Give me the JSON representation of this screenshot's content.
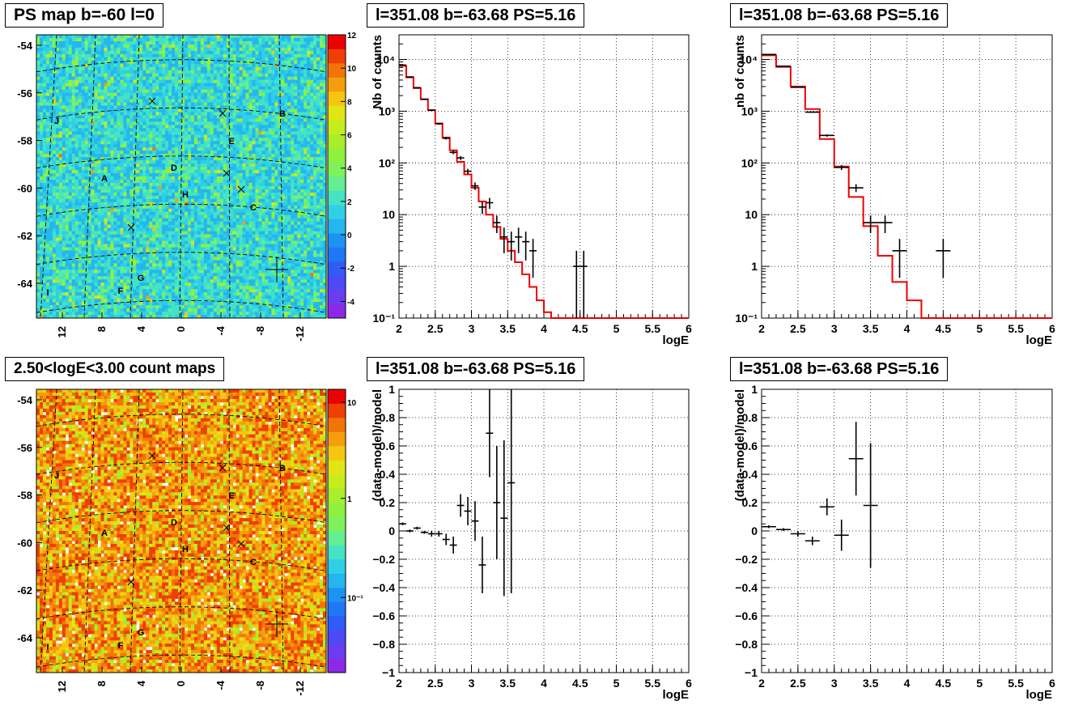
{
  "titles": {
    "map_top": "PS map b=-60 l=0",
    "map_bottom": "2.50<logE<3.00 count maps",
    "spec1": "l=351.08 b=-63.68 PS=5.16",
    "spec2": "l=351.08 b=-63.68 PS=5.16",
    "res1": "l=351.08 b=-63.68 PS=5.16",
    "res2": "l=351.08 b=-63.68 PS=5.16"
  },
  "maps": {
    "lat_ticks": [
      "-54",
      "-56",
      "-58",
      "-60",
      "-62",
      "-64"
    ],
    "lon_ticks": [
      "12",
      "8",
      "4",
      "0",
      "-4",
      "-8",
      "-12"
    ],
    "source_labels": [
      "A",
      "B",
      "C",
      "D",
      "E",
      "F",
      "G",
      "H",
      "I",
      "J"
    ],
    "top_colorbar": {
      "ticks": [
        "12",
        "10",
        "8",
        "6",
        "4",
        "2",
        "0",
        "-2",
        "-4"
      ],
      "range": [
        -5,
        12
      ]
    },
    "bottom_colorbar": {
      "ticks": [
        "10",
        "1",
        "10⁻¹"
      ],
      "scale": "log"
    }
  },
  "chart_data": [
    {
      "type": "line",
      "panel": "spectrum-1",
      "title": "l=351.08 b=-63.68 PS=5.16",
      "xlabel": "logE",
      "ylabel": "Nb of counts",
      "xlim": [
        2,
        6
      ],
      "ylim": [
        0.1,
        30000
      ],
      "yscale": "log",
      "grid": true,
      "xticks": [
        "2",
        "2.5",
        "3",
        "3.5",
        "4",
        "4.5",
        "5",
        "5.5",
        "6"
      ],
      "yticks": [
        "10⁻¹",
        "1",
        "10",
        "10²",
        "10³",
        "10⁴"
      ],
      "model_color": "#ee0000",
      "model_edges": [
        2.0,
        2.1,
        2.2,
        2.3,
        2.4,
        2.5,
        2.6,
        2.7,
        2.8,
        2.9,
        3.0,
        3.1,
        3.2,
        3.3,
        3.4,
        3.5,
        3.6,
        3.7,
        3.8,
        3.9,
        4.0,
        4.1,
        6.0
      ],
      "model_values": [
        7500,
        4500,
        2800,
        1700,
        1050,
        580,
        310,
        175,
        105,
        60,
        33,
        18,
        10,
        5.8,
        3.4,
        2.0,
        1.2,
        0.7,
        0.4,
        0.22,
        0.13,
        0.1
      ],
      "data": [
        {
          "x": 2.05,
          "xerr": 0.05,
          "y": 7800,
          "ylo": 7650,
          "yhi": 7950
        },
        {
          "x": 2.15,
          "xerr": 0.05,
          "y": 4600,
          "ylo": 4500,
          "yhi": 4700
        },
        {
          "x": 2.25,
          "xerr": 0.05,
          "y": 2850,
          "ylo": 2780,
          "yhi": 2920
        },
        {
          "x": 2.35,
          "xerr": 0.05,
          "y": 1700,
          "ylo": 1650,
          "yhi": 1750
        },
        {
          "x": 2.45,
          "xerr": 0.05,
          "y": 1040,
          "ylo": 1000,
          "yhi": 1080
        },
        {
          "x": 2.55,
          "xerr": 0.05,
          "y": 570,
          "ylo": 546,
          "yhi": 594
        },
        {
          "x": 2.65,
          "xerr": 0.05,
          "y": 300,
          "ylo": 283,
          "yhi": 317
        },
        {
          "x": 2.75,
          "xerr": 0.05,
          "y": 160,
          "ylo": 147,
          "yhi": 173
        },
        {
          "x": 2.85,
          "xerr": 0.05,
          "y": 125,
          "ylo": 114,
          "yhi": 136
        },
        {
          "x": 2.95,
          "xerr": 0.05,
          "y": 69,
          "ylo": 61,
          "yhi": 77
        },
        {
          "x": 3.05,
          "xerr": 0.05,
          "y": 36,
          "ylo": 30,
          "yhi": 42
        },
        {
          "x": 3.15,
          "xerr": 0.05,
          "y": 14,
          "ylo": 10.3,
          "yhi": 17.7
        },
        {
          "x": 3.25,
          "xerr": 0.05,
          "y": 17,
          "ylo": 12.9,
          "yhi": 21.1
        },
        {
          "x": 3.35,
          "xerr": 0.05,
          "y": 7,
          "ylo": 4.4,
          "yhi": 9.6
        },
        {
          "x": 3.45,
          "xerr": 0.05,
          "y": 3.7,
          "ylo": 1.8,
          "yhi": 5.6
        },
        {
          "x": 3.55,
          "xerr": 0.05,
          "y": 3,
          "ylo": 1.3,
          "yhi": 4.7
        },
        {
          "x": 3.65,
          "xerr": 0.05,
          "y": 3.7,
          "ylo": 1.8,
          "yhi": 5.6
        },
        {
          "x": 3.75,
          "xerr": 0.05,
          "y": 3,
          "ylo": 1.3,
          "yhi": 4.7
        },
        {
          "x": 3.85,
          "xerr": 0.05,
          "y": 2,
          "ylo": 0.6,
          "yhi": 3.4
        },
        {
          "x": 4.45,
          "xerr": 0.05,
          "y": 1,
          "ylo": 0.1,
          "yhi": 2
        },
        {
          "x": 4.55,
          "xerr": 0.05,
          "y": 1,
          "ylo": 0.1,
          "yhi": 2
        }
      ]
    },
    {
      "type": "line",
      "panel": "spectrum-2",
      "title": "l=351.08 b=-63.68 PS=5.16",
      "xlabel": "logE",
      "ylabel": "nb of counts",
      "xlim": [
        2,
        6
      ],
      "ylim": [
        0.1,
        30000
      ],
      "yscale": "log",
      "grid": true,
      "xticks": [
        "2",
        "2.5",
        "3",
        "3.5",
        "4",
        "4.5",
        "5",
        "5.5",
        "6"
      ],
      "yticks": [
        "10⁻¹",
        "1",
        "10",
        "10²",
        "10³",
        "10⁴"
      ],
      "model_color": "#ee0000",
      "model_edges": [
        2.0,
        2.2,
        2.4,
        2.6,
        2.8,
        3.0,
        3.2,
        3.4,
        3.6,
        3.8,
        4.0,
        4.2,
        6.0
      ],
      "model_values": [
        12000,
        7200,
        3000,
        1100,
        290,
        85,
        22,
        6,
        1.6,
        0.5,
        0.22,
        0.1
      ],
      "data": [
        {
          "x": 2.1,
          "xerr": 0.1,
          "y": 12500,
          "ylo": 12300,
          "yhi": 12700
        },
        {
          "x": 2.3,
          "xerr": 0.1,
          "y": 7400,
          "ylo": 7300,
          "yhi": 7500
        },
        {
          "x": 2.5,
          "xerr": 0.1,
          "y": 2900,
          "ylo": 2850,
          "yhi": 2950
        },
        {
          "x": 2.7,
          "xerr": 0.1,
          "y": 960,
          "ylo": 930,
          "yhi": 990
        },
        {
          "x": 2.9,
          "xerr": 0.1,
          "y": 340,
          "ylo": 322,
          "yhi": 358
        },
        {
          "x": 3.1,
          "xerr": 0.1,
          "y": 82,
          "ylo": 73,
          "yhi": 91
        },
        {
          "x": 3.3,
          "xerr": 0.1,
          "y": 33,
          "ylo": 27.3,
          "yhi": 38.7
        },
        {
          "x": 3.5,
          "xerr": 0.1,
          "y": 7,
          "ylo": 4.4,
          "yhi": 9.6
        },
        {
          "x": 3.7,
          "xerr": 0.1,
          "y": 7,
          "ylo": 4.4,
          "yhi": 9.6
        },
        {
          "x": 3.9,
          "xerr": 0.1,
          "y": 2,
          "ylo": 0.6,
          "yhi": 3.4
        },
        {
          "x": 4.5,
          "xerr": 0.1,
          "y": 2,
          "ylo": 0.6,
          "yhi": 3.4
        }
      ]
    },
    {
      "type": "scatter",
      "panel": "residual-1",
      "title": "l=351.08 b=-63.68 PS=5.16",
      "xlabel": "logE",
      "ylabel": "(data-model)/model",
      "xlim": [
        2,
        6
      ],
      "ylim": [
        -1,
        1
      ],
      "grid": true,
      "xticks": [
        "2",
        "2.5",
        "3",
        "3.5",
        "4",
        "4.5",
        "5",
        "5.5",
        "6"
      ],
      "yticks": [
        "−1",
        "−0.8",
        "−0.6",
        "−0.4",
        "−0.2",
        "0",
        "0.2",
        "0.4",
        "0.6",
        "0.8",
        "1"
      ],
      "data": [
        {
          "x": 2.05,
          "xerr": 0.05,
          "y": 0.05,
          "ylo": 0.04,
          "yhi": 0.06
        },
        {
          "x": 2.15,
          "xerr": 0.05,
          "y": 0.0,
          "ylo": -0.01,
          "yhi": 0.01
        },
        {
          "x": 2.25,
          "xerr": 0.05,
          "y": 0.02,
          "ylo": 0.01,
          "yhi": 0.03
        },
        {
          "x": 2.35,
          "xerr": 0.05,
          "y": -0.01,
          "ylo": -0.02,
          "yhi": 0.0
        },
        {
          "x": 2.45,
          "xerr": 0.05,
          "y": -0.02,
          "ylo": -0.04,
          "yhi": 0.0
        },
        {
          "x": 2.55,
          "xerr": 0.05,
          "y": -0.02,
          "ylo": -0.04,
          "yhi": 0.0
        },
        {
          "x": 2.65,
          "xerr": 0.05,
          "y": -0.06,
          "ylo": -0.1,
          "yhi": -0.02
        },
        {
          "x": 2.75,
          "xerr": 0.05,
          "y": -0.1,
          "ylo": -0.16,
          "yhi": -0.04
        },
        {
          "x": 2.85,
          "xerr": 0.05,
          "y": 0.18,
          "ylo": 0.1,
          "yhi": 0.26
        },
        {
          "x": 2.95,
          "xerr": 0.05,
          "y": 0.14,
          "ylo": 0.04,
          "yhi": 0.24
        },
        {
          "x": 3.05,
          "xerr": 0.05,
          "y": 0.07,
          "ylo": -0.07,
          "yhi": 0.21
        },
        {
          "x": 3.15,
          "xerr": 0.05,
          "y": -0.24,
          "ylo": -0.44,
          "yhi": -0.04
        },
        {
          "x": 3.25,
          "xerr": 0.05,
          "y": 0.69,
          "ylo": 0.38,
          "yhi": 1.0
        },
        {
          "x": 3.35,
          "xerr": 0.05,
          "y": 0.2,
          "ylo": -0.2,
          "yhi": 0.6
        },
        {
          "x": 3.45,
          "xerr": 0.05,
          "y": 0.09,
          "ylo": -0.46,
          "yhi": 0.64
        },
        {
          "x": 3.55,
          "xerr": 0.05,
          "y": 0.34,
          "ylo": -0.44,
          "yhi": 1.0
        }
      ]
    },
    {
      "type": "scatter",
      "panel": "residual-2",
      "title": "l=351.08 b=-63.68 PS=5.16",
      "xlabel": "logE",
      "ylabel": "(data-model)/model",
      "xlim": [
        2,
        6
      ],
      "ylim": [
        -1,
        1
      ],
      "grid": true,
      "xticks": [
        "2",
        "2.5",
        "3",
        "3.5",
        "4",
        "4.5",
        "5",
        "5.5",
        "6"
      ],
      "yticks": [
        "−1",
        "−0.8",
        "−0.6",
        "−0.4",
        "−0.2",
        "0",
        "0.2",
        "0.4",
        "0.6",
        "0.8",
        "1"
      ],
      "data": [
        {
          "x": 2.1,
          "xerr": 0.1,
          "y": 0.03,
          "ylo": 0.02,
          "yhi": 0.04
        },
        {
          "x": 2.3,
          "xerr": 0.1,
          "y": 0.01,
          "ylo": 0.0,
          "yhi": 0.02
        },
        {
          "x": 2.5,
          "xerr": 0.1,
          "y": -0.02,
          "ylo": -0.04,
          "yhi": 0.0
        },
        {
          "x": 2.7,
          "xerr": 0.1,
          "y": -0.07,
          "ylo": -0.1,
          "yhi": -0.04
        },
        {
          "x": 2.9,
          "xerr": 0.1,
          "y": 0.17,
          "ylo": 0.11,
          "yhi": 0.23
        },
        {
          "x": 3.1,
          "xerr": 0.1,
          "y": -0.03,
          "ylo": -0.14,
          "yhi": 0.08
        },
        {
          "x": 3.3,
          "xerr": 0.1,
          "y": 0.51,
          "ylo": 0.25,
          "yhi": 0.77
        },
        {
          "x": 3.5,
          "xerr": 0.1,
          "y": 0.18,
          "ylo": -0.26,
          "yhi": 0.62
        }
      ]
    }
  ]
}
